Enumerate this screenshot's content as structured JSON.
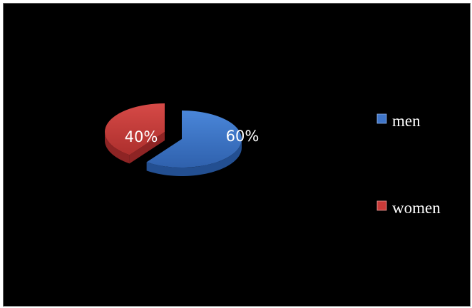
{
  "chart_data": {
    "type": "pie",
    "title": "",
    "categories": [
      "men",
      "women"
    ],
    "values": [
      60,
      40
    ],
    "labels": [
      "60%",
      "40%"
    ],
    "colors": [
      "#3f75c8",
      "#c83a38"
    ],
    "dark_colors": [
      "#234f91",
      "#8e2424"
    ],
    "legend": {
      "position": "right",
      "entries": [
        "men",
        "women"
      ]
    },
    "exploded": true,
    "three_d": true
  }
}
